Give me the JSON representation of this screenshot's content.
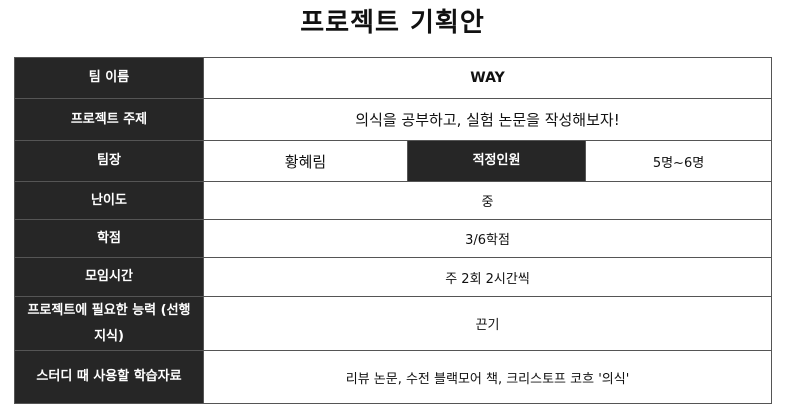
{
  "title": "프로젝트 기획안",
  "rows": {
    "team_name": {
      "label": "팀 이름",
      "value": "WAY"
    },
    "topic": {
      "label": "프로젝트 주제",
      "value": "의식을 공부하고, 실험 논문을 작성해보자!"
    },
    "leader": {
      "label": "팀장",
      "value": "황혜림",
      "size_label": "적정인원",
      "size_value": "5명~6명"
    },
    "difficulty": {
      "label": "난이도",
      "value": "중"
    },
    "credits": {
      "label": "학점",
      "value": "3/6학점"
    },
    "meeting": {
      "label": "모임시간",
      "value": "주 2회 2시간씩"
    },
    "skills": {
      "label": "프로젝트에 필요한 능력 (선행지식)",
      "value": "끈기"
    },
    "materials": {
      "label": "스터디 때 사용할 학습자료",
      "value": "리뷰 논문, 수전 블랙모어 책, 크리스토프 코흐 '의식'"
    }
  }
}
